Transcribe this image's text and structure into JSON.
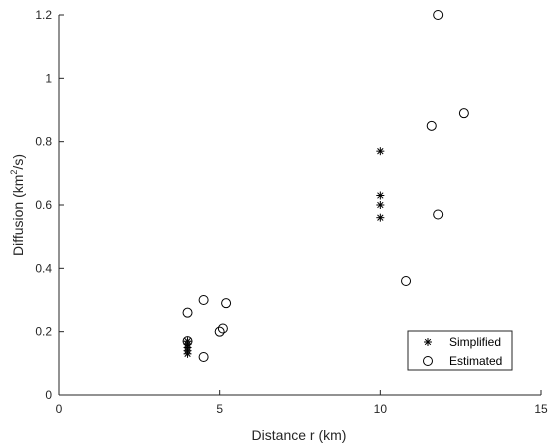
{
  "chart_data": {
    "type": "scatter",
    "xlabel": "Distance r (km)",
    "ylabel": {
      "prefix": "Diffusion (km",
      "sup": "2",
      "suffix": "/s)"
    },
    "xlim": [
      0,
      15
    ],
    "ylim": [
      0,
      1.2
    ],
    "xticks": [
      0,
      5,
      10,
      15
    ],
    "yticks": [
      0,
      0.2,
      0.4,
      0.6,
      0.8,
      1,
      1.2
    ],
    "xtick_labels": [
      "0",
      "5",
      "10",
      "15"
    ],
    "ytick_labels": [
      "0",
      "0.2",
      "0.4",
      "0.6",
      "0.8",
      "1",
      "1.2"
    ],
    "grid": false,
    "legend_position": "bottom-right",
    "series": [
      {
        "name": "Simplified",
        "marker": "asterisk",
        "color": "#000000",
        "points": [
          [
            4,
            0.13
          ],
          [
            4,
            0.14
          ],
          [
            4,
            0.15
          ],
          [
            4,
            0.16
          ],
          [
            4,
            0.17
          ],
          [
            10,
            0.56
          ],
          [
            10,
            0.6
          ],
          [
            10,
            0.63
          ],
          [
            10,
            0.77
          ]
        ]
      },
      {
        "name": "Estimated",
        "marker": "circle",
        "color": "#000000",
        "points": [
          [
            4,
            0.26
          ],
          [
            4,
            0.17
          ],
          [
            4.5,
            0.3
          ],
          [
            4.5,
            0.12
          ],
          [
            5,
            0.2
          ],
          [
            5.1,
            0.21
          ],
          [
            5.2,
            0.29
          ],
          [
            10.8,
            0.36
          ],
          [
            11.6,
            0.85
          ],
          [
            11.8,
            1.2
          ],
          [
            11.8,
            0.57
          ],
          [
            12.6,
            0.89
          ]
        ]
      }
    ]
  }
}
